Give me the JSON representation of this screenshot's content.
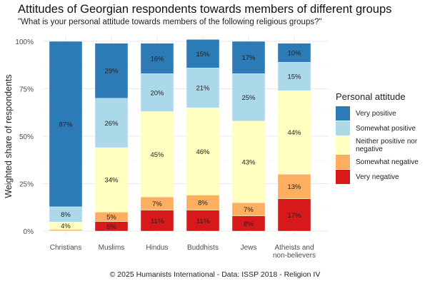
{
  "chart_data": {
    "type": "bar",
    "stacked": true,
    "title": "Attitudes of Georgian respondents towards members of different groups",
    "subtitle": "\"What is your personal attitude towards members of the following religious groups?\"",
    "caption": "© 2025 Humanists International - Data: ISSP 2018 - Religion IV",
    "xlabel": "",
    "ylabel": "Weighted share of respondents",
    "ylim": [
      0,
      100
    ],
    "yticks": [
      0,
      25,
      50,
      75,
      100
    ],
    "ytick_labels": [
      "0%",
      "25%",
      "50%",
      "75%",
      "100%"
    ],
    "grid": true,
    "legend_title": "Personal attitude",
    "legend_position": "right",
    "categories": [
      "Christians",
      "Muslims",
      "Hindus",
      "Buddhists",
      "Jews",
      "Atheists and\nnon-believers"
    ],
    "series": [
      {
        "name": "Very negative",
        "color": "#d7191c",
        "values": [
          0.2,
          5,
          11,
          11,
          8,
          17
        ],
        "labels": [
          "",
          "5%",
          "11%",
          "11%",
          "8%",
          "17%"
        ]
      },
      {
        "name": "Somewhat negative",
        "color": "#fdae61",
        "values": [
          0.6,
          5,
          7,
          8,
          7,
          13
        ],
        "labels": [
          "",
          "5%",
          "7%",
          "8%",
          "7%",
          "13%"
        ]
      },
      {
        "name": "Neither positive nor\nnegative",
        "color": "#ffffbf",
        "values": [
          4,
          34,
          45,
          46,
          43,
          44
        ],
        "labels": [
          "4%",
          "34%",
          "45%",
          "46%",
          "43%",
          "44%"
        ]
      },
      {
        "name": "Somewhat positive",
        "color": "#abd9e9",
        "values": [
          8,
          26,
          20,
          21,
          25,
          15
        ],
        "labels": [
          "8%",
          "26%",
          "20%",
          "21%",
          "25%",
          "15%"
        ]
      },
      {
        "name": "Very positive",
        "color": "#2c7bb6",
        "values": [
          87.2,
          29,
          16,
          15,
          17,
          10
        ],
        "labels": [
          "87%",
          "29%",
          "16%",
          "15%",
          "17%",
          "10%"
        ]
      }
    ],
    "legend_order": [
      "Very positive",
      "Somewhat positive",
      "Neither positive nor\nnegative",
      "Somewhat negative",
      "Very negative"
    ]
  }
}
